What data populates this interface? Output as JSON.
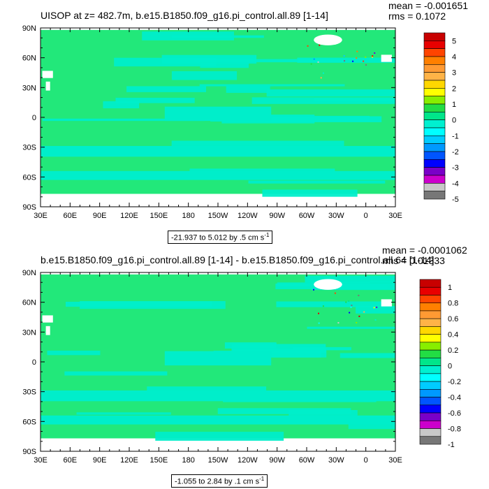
{
  "panels": [
    {
      "title": "UISOP at z= 482.7m, b.e15.B1850.f09_g16.pi_control.all.89 [1-14]",
      "mean": "mean = -0.001651",
      "rms": "rms = 0.1072",
      "caption": "-21.937 to 5.012 by .5 cm s",
      "caption_sup": "-1",
      "lat_labels": [
        "90N",
        "60N",
        "30N",
        "0",
        "30S",
        "60S",
        "90S"
      ],
      "lon_labels": [
        "30E",
        "60E",
        "90E",
        "120E",
        "150E",
        "180",
        "150W",
        "120W",
        "90W",
        "60W",
        "30W",
        "0",
        "30E"
      ],
      "colorbar_labels": [
        "5",
        "4",
        "3",
        "2",
        "1",
        "0",
        "-1",
        "-2",
        "-3",
        "-4",
        "-5"
      ],
      "colorbar_colors": [
        "#c80000",
        "#e80000",
        "#ff4400",
        "#ff7f00",
        "#ff9a33",
        "#ffb347",
        "#ffd700",
        "#ffff00",
        "#88ee00",
        "#22dd44",
        "#00e68a",
        "#00f0d0",
        "#00ffff",
        "#00ccff",
        "#0099ff",
        "#0055ff",
        "#0000ff",
        "#7a00c8",
        "#cc00cc",
        "#c8c8c8",
        "#777777"
      ]
    },
    {
      "title": "b.e15.B1850.f09_g16.pi_control.all.89 [1-14] - b.e15.B1850.f09_g16.pi_control.all.64 [1-14]",
      "mean": "mean = -0.0001062",
      "rms": "rms = 0.01333",
      "caption": "-1.055 to 2.84 by .1 cm s",
      "caption_sup": "-1",
      "lat_labels": [
        "90N",
        "60N",
        "30N",
        "0",
        "30S",
        "60S",
        "90S"
      ],
      "lon_labels": [
        "30E",
        "60E",
        "90E",
        "120E",
        "150E",
        "180",
        "150W",
        "120W",
        "90W",
        "60W",
        "30W",
        "0",
        "30E"
      ],
      "colorbar_labels": [
        "1",
        "0.8",
        "0.6",
        "0.4",
        "0.2",
        "0",
        "-0.2",
        "-0.4",
        "-0.6",
        "-0.8",
        "-1"
      ],
      "colorbar_colors": [
        "#c80000",
        "#e80000",
        "#ff4400",
        "#ff7f00",
        "#ff9a33",
        "#ffb347",
        "#ffd700",
        "#ffff00",
        "#88ee00",
        "#22dd44",
        "#00e68a",
        "#00f0d0",
        "#00ffff",
        "#00ccff",
        "#0099ff",
        "#0055ff",
        "#0000ff",
        "#7a00c8",
        "#cc00cc",
        "#c8c8c8",
        "#777777"
      ]
    }
  ],
  "chart_data": [
    {
      "type": "heatmap",
      "title": "UISOP at z= 482.7m, b.e15.B1850.f09_g16.pi_control.all.89 [1-14]",
      "projection": "cylindrical-equidistant",
      "x_range": [
        30,
        390
      ],
      "y_range": [
        -90,
        90
      ],
      "x_ticks": [
        "30E",
        "60E",
        "90E",
        "120E",
        "150E",
        "180",
        "150W",
        "120W",
        "90W",
        "60W",
        "30W",
        "0",
        "30E"
      ],
      "y_ticks": [
        "90N",
        "60N",
        "30N",
        "0",
        "30S",
        "60S",
        "90S"
      ],
      "color_levels": [
        5,
        4,
        3,
        2,
        1,
        0,
        -1,
        -2,
        -3,
        -4,
        -5
      ],
      "mean": -0.001651,
      "rms": 0.1072,
      "range_min": -21.937,
      "range_max": 5.012,
      "interval": 0.5,
      "units": "cm s-1"
    },
    {
      "type": "heatmap",
      "title": "b.e15.B1850.f09_g16.pi_control.all.89 [1-14] - b.e15.B1850.f09_g16.pi_control.all.64 [1-14]",
      "projection": "cylindrical-equidistant",
      "x_range": [
        30,
        390
      ],
      "y_range": [
        -90,
        90
      ],
      "x_ticks": [
        "30E",
        "60E",
        "90E",
        "120E",
        "150E",
        "180",
        "150W",
        "120W",
        "90W",
        "60W",
        "30W",
        "0",
        "30E"
      ],
      "y_ticks": [
        "90N",
        "60N",
        "30N",
        "0",
        "30S",
        "60S",
        "90S"
      ],
      "color_levels": [
        1,
        0.8,
        0.6,
        0.4,
        0.2,
        0,
        -0.2,
        -0.4,
        -0.6,
        -0.8,
        -1
      ],
      "mean": -0.0001062,
      "rms": 0.01333,
      "range_min": -1.055,
      "range_max": 2.84,
      "interval": 0.1,
      "units": "cm s-1"
    }
  ]
}
